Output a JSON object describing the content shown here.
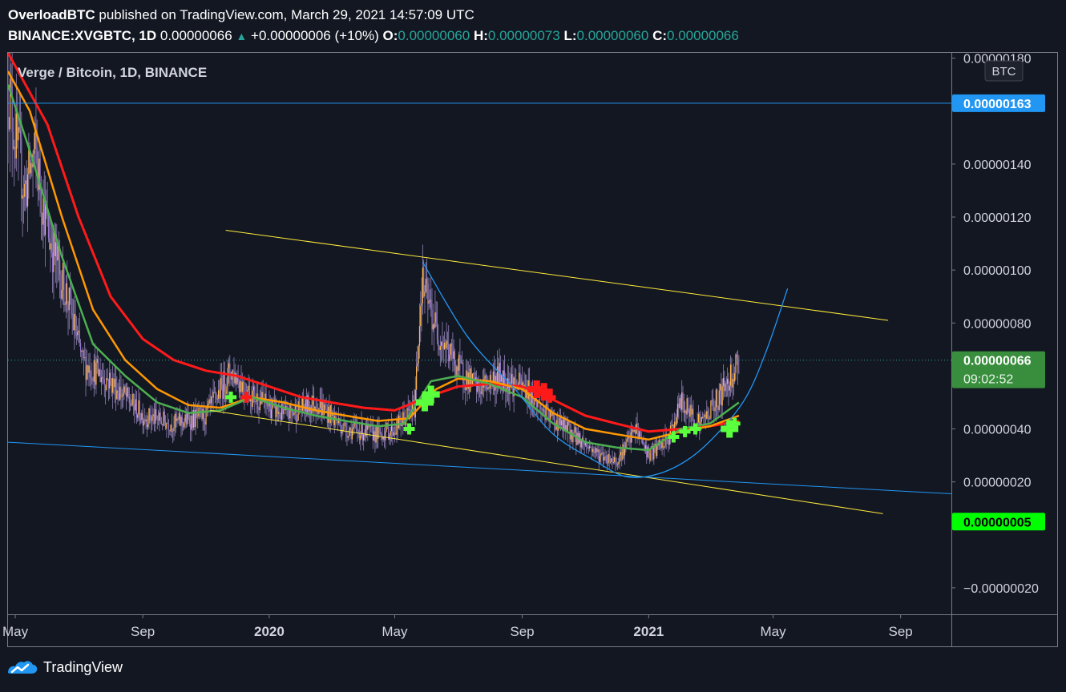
{
  "header": {
    "author": "OverloadBTC",
    "published": "published on TradingView.com, March 29, 2021 14:57:09 UTC",
    "symbol": "BINANCE:XVGBTC, 1D",
    "last": "0.00000066",
    "change": "+0.00000006 (+10%)",
    "o_label": "O:",
    "o_value": "0.00000060",
    "h_label": "H:",
    "h_value": "0.00000073",
    "l_label": "L:",
    "l_value": "0.00000060",
    "c_label": "C:",
    "c_value": "0.00000066"
  },
  "footer": {
    "brand": "TradingView"
  },
  "colors": {
    "background": "#131722",
    "ema_red": "#ff1a1a",
    "ema_orange": "#ff9800",
    "ema_green": "#4caf50",
    "trend_yellow": "#ffeb3b",
    "trend_blue": "#2196f3",
    "price_badge": "#388e3c",
    "level_badge": "#2196f3",
    "low_badge": "#00ff00",
    "buy_marker": "#5aff3d",
    "sell_marker": "#ff1a1a"
  },
  "chart_data": {
    "type": "candlestick",
    "title": "Verge / Bitcoin, 1D, BINANCE",
    "currency_badge": "BTC",
    "y_unit": "BTC",
    "ylim": [
      -3e-07,
      1.82e-06
    ],
    "x_range": [
      "2019-04-24",
      "2021-10-20"
    ],
    "y_ticks": [
      {
        "value": 1.8e-06,
        "label": "0.00000180"
      },
      {
        "value": 1.4e-06,
        "label": "0.00000140"
      },
      {
        "value": 1.2e-06,
        "label": "0.00000120"
      },
      {
        "value": 1e-06,
        "label": "0.00000100"
      },
      {
        "value": 8e-07,
        "label": "0.00000080"
      },
      {
        "value": 4e-07,
        "label": "0.00000040"
      },
      {
        "value": 2e-07,
        "label": "0.00000020"
      },
      {
        "value": -2e-07,
        "label": "−0.00000020"
      }
    ],
    "x_ticks": [
      {
        "date": "2019-05-01",
        "label": "May",
        "bold": false
      },
      {
        "date": "2019-09-01",
        "label": "Sep",
        "bold": false
      },
      {
        "date": "2020-01-01",
        "label": "2020",
        "bold": true
      },
      {
        "date": "2020-05-01",
        "label": "May",
        "bold": false
      },
      {
        "date": "2020-09-01",
        "label": "Sep",
        "bold": false
      },
      {
        "date": "2021-01-01",
        "label": "2021",
        "bold": true
      },
      {
        "date": "2021-05-01",
        "label": "May",
        "bold": false
      },
      {
        "date": "2021-09-01",
        "label": "Sep",
        "bold": false
      }
    ],
    "price_anchors": [
      [
        "2019-04-24",
        1.7e-06
      ],
      [
        "2019-05-01",
        1.5e-06
      ],
      [
        "2019-05-10",
        1.3e-06
      ],
      [
        "2019-05-20",
        1.45e-06
      ],
      [
        "2019-06-01",
        1.15e-06
      ],
      [
        "2019-06-20",
        9e-07
      ],
      [
        "2019-07-05",
        6.5e-07
      ],
      [
        "2019-08-01",
        5.8e-07
      ],
      [
        "2019-09-01",
        4.5e-07
      ],
      [
        "2019-10-01",
        4.2e-07
      ],
      [
        "2019-11-01",
        4.5e-07
      ],
      [
        "2019-11-25",
        6.2e-07
      ],
      [
        "2019-12-15",
        5.3e-07
      ],
      [
        "2020-01-15",
        4.5e-07
      ],
      [
        "2020-02-15",
        5e-07
      ],
      [
        "2020-03-15",
        4e-07
      ],
      [
        "2020-04-15",
        3.8e-07
      ],
      [
        "2020-05-01",
        4e-07
      ],
      [
        "2020-05-20",
        4.8e-07
      ],
      [
        "2020-05-27",
        9.5e-07
      ],
      [
        "2020-06-10",
        7.8e-07
      ],
      [
        "2020-07-01",
        6.3e-07
      ],
      [
        "2020-07-20",
        5.5e-07
      ],
      [
        "2020-08-10",
        6e-07
      ],
      [
        "2020-09-05",
        5.5e-07
      ],
      [
        "2020-09-25",
        4.5e-07
      ],
      [
        "2020-10-20",
        3.8e-07
      ],
      [
        "2020-11-15",
        3e-07
      ],
      [
        "2020-12-01",
        2.8e-07
      ],
      [
        "2020-12-20",
        4e-07
      ],
      [
        "2021-01-01",
        3e-07
      ],
      [
        "2021-01-20",
        3.6e-07
      ],
      [
        "2021-02-01",
        5e-07
      ],
      [
        "2021-02-20",
        4.2e-07
      ],
      [
        "2021-03-10",
        5.2e-07
      ],
      [
        "2021-03-29",
        6.6e-07
      ]
    ],
    "ema_red": [
      [
        "2019-04-24",
        1.82e-06
      ],
      [
        "2019-06-01",
        1.55e-06
      ],
      [
        "2019-07-01",
        1.2e-06
      ],
      [
        "2019-08-01",
        9e-07
      ],
      [
        "2019-09-01",
        7.4e-07
      ],
      [
        "2019-10-01",
        6.6e-07
      ],
      [
        "2019-11-01",
        6.2e-07
      ],
      [
        "2019-12-01",
        6e-07
      ],
      [
        "2020-01-01",
        5.6e-07
      ],
      [
        "2020-02-01",
        5.2e-07
      ],
      [
        "2020-03-01",
        5e-07
      ],
      [
        "2020-04-01",
        4.8e-07
      ],
      [
        "2020-05-01",
        4.7e-07
      ],
      [
        "2020-06-01",
        5.2e-07
      ],
      [
        "2020-07-01",
        5.6e-07
      ],
      [
        "2020-08-01",
        5.7e-07
      ],
      [
        "2020-09-01",
        5.6e-07
      ],
      [
        "2020-10-01",
        5.1e-07
      ],
      [
        "2020-11-01",
        4.5e-07
      ],
      [
        "2020-12-01",
        4.2e-07
      ],
      [
        "2021-01-01",
        3.9e-07
      ],
      [
        "2021-02-01",
        4e-07
      ],
      [
        "2021-03-01",
        4.1e-07
      ],
      [
        "2021-03-29",
        4.3e-07
      ]
    ],
    "ema_orange": [
      [
        "2019-04-24",
        1.75e-06
      ],
      [
        "2019-05-15",
        1.6e-06
      ],
      [
        "2019-06-15",
        1.2e-06
      ],
      [
        "2019-07-15",
        8.5e-07
      ],
      [
        "2019-08-15",
        6.6e-07
      ],
      [
        "2019-09-15",
        5.5e-07
      ],
      [
        "2019-10-15",
        4.9e-07
      ],
      [
        "2019-11-15",
        4.8e-07
      ],
      [
        "2019-12-15",
        5.2e-07
      ],
      [
        "2020-01-15",
        5e-07
      ],
      [
        "2020-02-15",
        4.7e-07
      ],
      [
        "2020-03-15",
        4.5e-07
      ],
      [
        "2020-04-15",
        4.3e-07
      ],
      [
        "2020-05-15",
        4.4e-07
      ],
      [
        "2020-06-10",
        5.5e-07
      ],
      [
        "2020-07-01",
        5.9e-07
      ],
      [
        "2020-08-01",
        5.8e-07
      ],
      [
        "2020-09-01",
        5.5e-07
      ],
      [
        "2020-10-01",
        4.6e-07
      ],
      [
        "2020-11-01",
        4e-07
      ],
      [
        "2020-12-01",
        3.8e-07
      ],
      [
        "2021-01-01",
        3.6e-07
      ],
      [
        "2021-02-01",
        3.9e-07
      ],
      [
        "2021-03-01",
        4.1e-07
      ],
      [
        "2021-03-29",
        4.5e-07
      ]
    ],
    "ema_green": [
      [
        "2019-04-24",
        1.7e-06
      ],
      [
        "2019-05-15",
        1.45e-06
      ],
      [
        "2019-06-15",
        1.05e-06
      ],
      [
        "2019-07-15",
        7.2e-07
      ],
      [
        "2019-08-15",
        6e-07
      ],
      [
        "2019-09-15",
        5e-07
      ],
      [
        "2019-10-15",
        4.6e-07
      ],
      [
        "2019-11-15",
        4.7e-07
      ],
      [
        "2019-12-15",
        5.2e-07
      ],
      [
        "2020-01-15",
        4.8e-07
      ],
      [
        "2020-02-15",
        4.5e-07
      ],
      [
        "2020-03-15",
        4.3e-07
      ],
      [
        "2020-04-15",
        4.1e-07
      ],
      [
        "2020-05-10",
        4.2e-07
      ],
      [
        "2020-06-05",
        5.8e-07
      ],
      [
        "2020-07-01",
        6e-07
      ],
      [
        "2020-08-01",
        5.7e-07
      ],
      [
        "2020-09-01",
        5.2e-07
      ],
      [
        "2020-10-01",
        4.2e-07
      ],
      [
        "2020-11-01",
        3.5e-07
      ],
      [
        "2020-12-01",
        3.3e-07
      ],
      [
        "2021-01-01",
        3.2e-07
      ],
      [
        "2021-02-01",
        4e-07
      ],
      [
        "2021-03-01",
        4.2e-07
      ],
      [
        "2021-03-29",
        5e-07
      ]
    ],
    "trendlines": [
      {
        "color": "yellow",
        "from": [
          "2019-11-20",
          1.15e-06
        ],
        "to": [
          "2021-08-20",
          8.1e-07
        ]
      },
      {
        "color": "yellow",
        "from": [
          "2019-11-05",
          4.7e-07
        ],
        "to": [
          "2021-08-15",
          8e-08
        ]
      },
      {
        "color": "blue",
        "from": [
          "2019-04-24",
          3.5e-07
        ],
        "to": [
          "2021-10-20",
          1.55e-07
        ]
      }
    ],
    "hline": {
      "value": 1.63e-06,
      "label": "0.00000163"
    },
    "current_price": {
      "value": 6.6e-07,
      "label": "0.00000066",
      "timer": "09:02:52"
    },
    "low_badge": {
      "value": 5e-08,
      "label": "0.00000005"
    },
    "arc": [
      [
        "2020-05-28",
        1.03e-06
      ],
      [
        "2020-07-10",
        7.5e-07
      ],
      [
        "2020-08-25",
        5.5e-07
      ],
      [
        "2020-10-01",
        3.8e-07
      ],
      [
        "2020-11-10",
        2.8e-07
      ],
      [
        "2020-12-10",
        2.2e-07
      ],
      [
        "2021-01-10",
        2.3e-07
      ],
      [
        "2021-02-10",
        2.9e-07
      ],
      [
        "2021-03-10",
        3.9e-07
      ],
      [
        "2021-04-05",
        5.2e-07
      ],
      [
        "2021-04-25",
        7e-07
      ],
      [
        "2021-05-15",
        9.3e-07
      ]
    ],
    "buy_signals": [
      [
        "2019-11-25",
        5.2e-07,
        1
      ],
      [
        "2020-05-15",
        4e-07,
        1
      ],
      [
        "2020-05-30",
        5e-07,
        2
      ],
      [
        "2020-06-05",
        5.3e-07,
        2
      ],
      [
        "2021-01-25",
        3.7e-07,
        1
      ],
      [
        "2021-02-05",
        3.9e-07,
        1
      ],
      [
        "2021-02-15",
        4e-07,
        1
      ],
      [
        "2021-03-20",
        4e-07,
        2
      ],
      [
        "2021-03-25",
        4.2e-07,
        1
      ]
    ],
    "sell_signals": [
      [
        "2019-12-10",
        5.2e-07,
        1
      ],
      [
        "2020-09-15",
        5.5e-07,
        2
      ],
      [
        "2020-09-22",
        5.4e-07,
        2
      ],
      [
        "2020-09-28",
        5.2e-07,
        1
      ]
    ]
  }
}
